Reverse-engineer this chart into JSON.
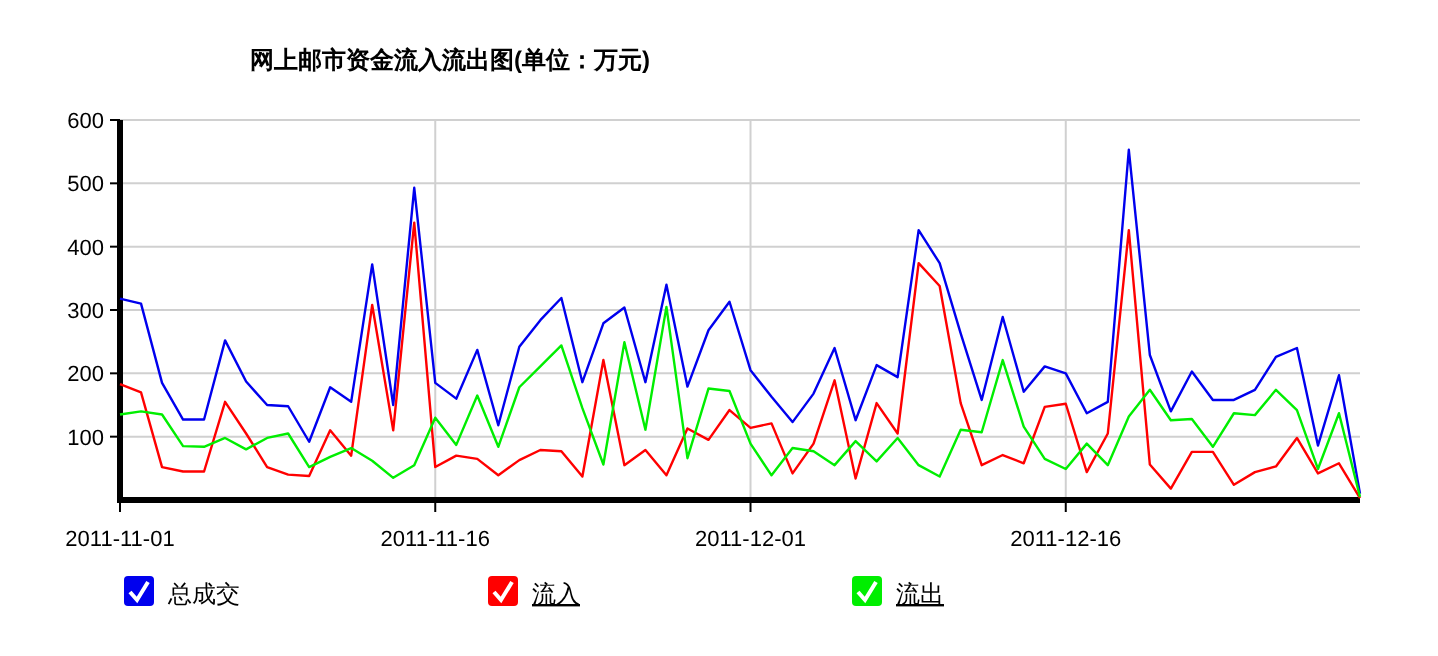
{
  "chart_data": {
    "type": "line",
    "title": "网上邮市资金流入流出图(单位：万元)",
    "x": [
      "2011-11-01",
      "2011-11-02",
      "2011-11-03",
      "2011-11-04",
      "2011-11-05",
      "2011-11-06",
      "2011-11-07",
      "2011-11-08",
      "2011-11-09",
      "2011-11-10",
      "2011-11-11",
      "2011-11-12",
      "2011-11-13",
      "2011-11-14",
      "2011-11-15",
      "2011-11-16",
      "2011-11-17",
      "2011-11-18",
      "2011-11-19",
      "2011-11-20",
      "2011-11-21",
      "2011-11-22",
      "2011-11-23",
      "2011-11-24",
      "2011-11-25",
      "2011-11-26",
      "2011-11-27",
      "2011-11-28",
      "2011-11-29",
      "2011-11-30",
      "2011-12-01",
      "2011-12-02",
      "2011-12-03",
      "2011-12-04",
      "2011-12-05",
      "2011-12-06",
      "2011-12-07",
      "2011-12-08",
      "2011-12-09",
      "2011-12-10",
      "2011-12-11",
      "2011-12-12",
      "2011-12-13",
      "2011-12-14",
      "2011-12-15",
      "2011-12-16",
      "2011-12-17",
      "2011-12-18",
      "2011-12-19",
      "2011-12-20",
      "2011-12-21",
      "2011-12-22",
      "2011-12-23",
      "2011-12-24",
      "2011-12-25",
      "2011-12-26",
      "2011-12-27",
      "2011-12-28",
      "2011-12-29",
      "2011-12-30"
    ],
    "series": [
      {
        "name": "总成交",
        "color": "#0000ee",
        "values": [
          318,
          310,
          185,
          127,
          127,
          252,
          187,
          150,
          148,
          92,
          178,
          155,
          372,
          150,
          493,
          185,
          160,
          237,
          118,
          242,
          284,
          319,
          186,
          279,
          304,
          186,
          340,
          179,
          268,
          313,
          205,
          163,
          123,
          168,
          240,
          126,
          213,
          194,
          426,
          374,
          263,
          158,
          289,
          171,
          211,
          200,
          137,
          155,
          553,
          229,
          140,
          203,
          158,
          158,
          174,
          226,
          240,
          86,
          197,
          10
        ]
      },
      {
        "name": "流入",
        "color": "#ff0000",
        "values": [
          183,
          170,
          52,
          45,
          45,
          155,
          105,
          52,
          40,
          38,
          110,
          70,
          308,
          110,
          438,
          52,
          70,
          65,
          39,
          63,
          79,
          77,
          37,
          221,
          55,
          79,
          39,
          113,
          95,
          142,
          114,
          121,
          42,
          89,
          189,
          34,
          153,
          105,
          374,
          338,
          153,
          55,
          71,
          58,
          147,
          152,
          44,
          105,
          426,
          56,
          18,
          76,
          76,
          24,
          44,
          53,
          98,
          42,
          58,
          3
        ]
      },
      {
        "name": "流出",
        "color": "#00ee00",
        "values": [
          135,
          140,
          135,
          85,
          84,
          98,
          80,
          98,
          105,
          52,
          68,
          82,
          62,
          35,
          55,
          130,
          87,
          165,
          84,
          178,
          211,
          244,
          145,
          56,
          249,
          111,
          305,
          66,
          176,
          172,
          89,
          39,
          82,
          77,
          55,
          93,
          61,
          98,
          55,
          37,
          111,
          107,
          221,
          116,
          65,
          49,
          89,
          55,
          132,
          174,
          126,
          128,
          84,
          137,
          134,
          174,
          142,
          49,
          137,
          5
        ]
      }
    ],
    "xlim": [
      "2011-11-01",
      "2011-12-30"
    ],
    "xticks": [
      "2011-11-01",
      "2011-11-16",
      "2011-12-01",
      "2011-12-16"
    ],
    "ylim": [
      0,
      600
    ],
    "yticks": [
      100,
      200,
      300,
      400,
      500,
      600
    ],
    "grid": true,
    "legend": "bottom",
    "marker": "none",
    "line_style": "solid"
  }
}
